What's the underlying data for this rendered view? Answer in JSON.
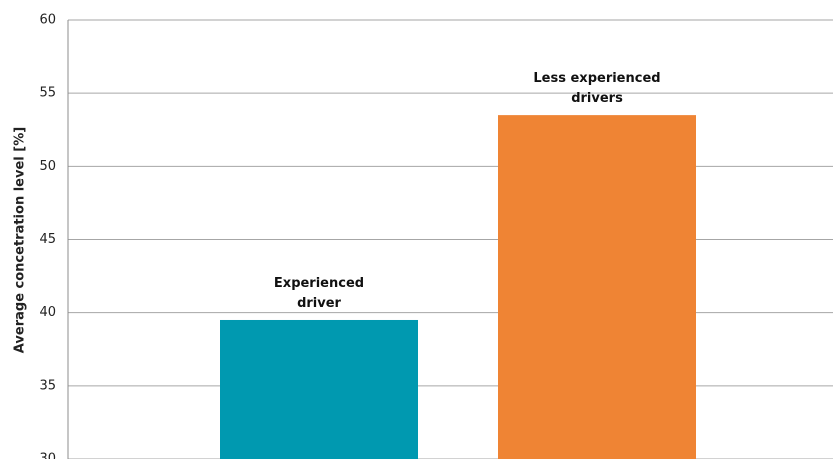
{
  "chart_data": {
    "type": "bar",
    "y_label": "Average concetration level [%]",
    "categories": [
      "Experienced driver",
      "Less experienced drivers"
    ],
    "series": [
      {
        "values": [
          39.5,
          53.5
        ],
        "colors": [
          "#0099b0",
          "#ef8434"
        ]
      }
    ],
    "ylim": [
      30,
      60
    ],
    "yticks": [
      30,
      35,
      40,
      45,
      50,
      55,
      60
    ],
    "grid": true
  }
}
